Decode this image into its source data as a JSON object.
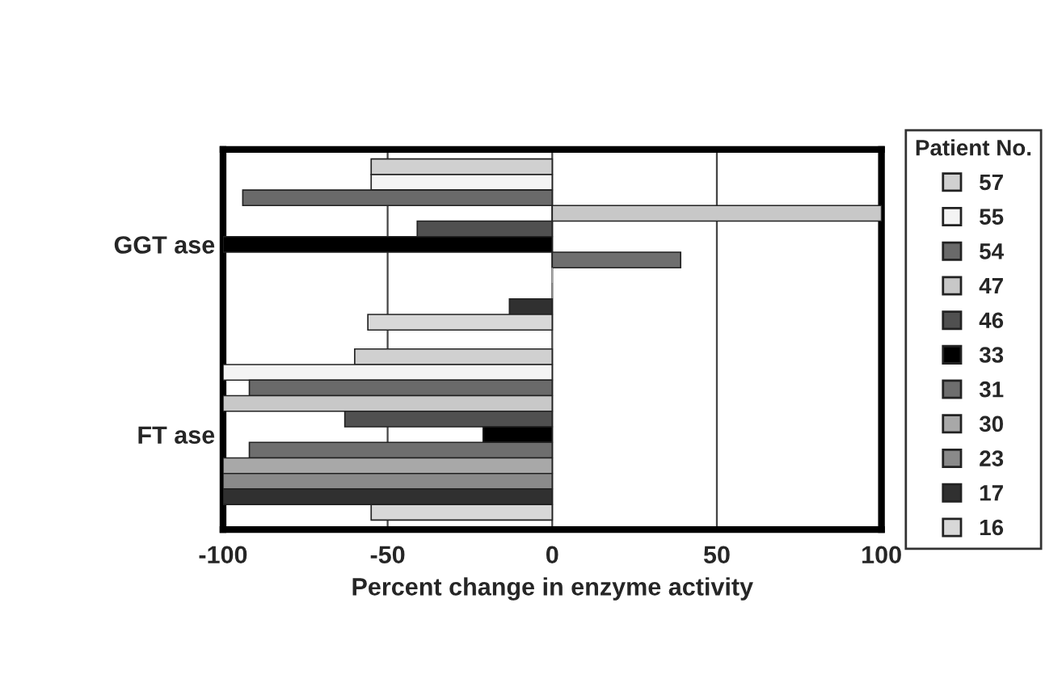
{
  "chart_data": {
    "type": "bar",
    "orientation": "horizontal",
    "xlabel": "Percent change in enzyme activity",
    "legend_title": "Patient No.",
    "legend": "right",
    "grid": "x",
    "categories": [
      "GGT ase",
      "FT ase"
    ],
    "xlim": [
      -100,
      100
    ],
    "xticks": [
      -100,
      -50,
      0,
      50,
      100
    ],
    "series": [
      {
        "name": "57",
        "color": "#d0d0d0",
        "values": [
          -55,
          -60
        ]
      },
      {
        "name": "55",
        "color": "#f4f4f4",
        "values": [
          -55,
          -100
        ]
      },
      {
        "name": "54",
        "color": "#6a6a6a",
        "values": [
          -94,
          -92
        ]
      },
      {
        "name": "47",
        "color": "#c8c8c8",
        "values": [
          100,
          -100
        ]
      },
      {
        "name": "46",
        "color": "#505050",
        "values": [
          -41,
          -63
        ]
      },
      {
        "name": "33",
        "color": "#000000",
        "values": [
          -100,
          -21
        ]
      },
      {
        "name": "31",
        "color": "#6e6e6e",
        "values": [
          39,
          -92
        ]
      },
      {
        "name": "30",
        "color": "#a8a8a8",
        "values": [
          0,
          -100
        ]
      },
      {
        "name": "23",
        "color": "#8a8a8a",
        "values": [
          0,
          -100
        ]
      },
      {
        "name": "17",
        "color": "#303030",
        "values": [
          -13,
          -100
        ]
      },
      {
        "name": "16",
        "color": "#d8d8d8",
        "values": [
          -56,
          -55
        ]
      }
    ]
  }
}
